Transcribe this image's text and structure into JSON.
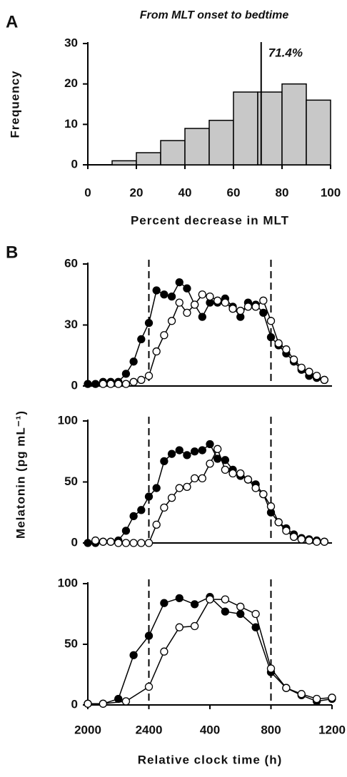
{
  "chart_data": [
    {
      "type": "histogram",
      "panel_label": "A",
      "title": "From MLT onset to bedtime",
      "xlabel": "Percent decrease in MLT",
      "ylabel": "Frequency",
      "bins": [
        0,
        10,
        20,
        30,
        40,
        50,
        60,
        70,
        80,
        90,
        100
      ],
      "values": [
        0,
        1,
        3,
        6,
        9,
        11,
        18,
        18,
        20,
        16
      ],
      "color": "#c8c8c8",
      "xlim": [
        0,
        100
      ],
      "xticks": [
        0,
        20,
        40,
        60,
        80,
        100
      ],
      "ylim": [
        0,
        30
      ],
      "yticks": [
        0,
        10,
        20,
        30
      ],
      "marker": 71.4,
      "annotation": "71.4%"
    },
    {
      "type": "line",
      "panel_label": "B",
      "ylabel": "Melatonin (pg mL⁻¹)",
      "xlim": [
        20,
        36
      ],
      "ylim": [
        0,
        60
      ],
      "yticks": [
        0,
        30,
        60
      ],
      "dashed_lines": [
        24,
        32
      ],
      "series": [
        {
          "color": "#000000",
          "marker": "filled",
          "x": [
            20,
            20.5,
            21,
            21.5,
            22,
            22.5,
            23,
            23.5,
            24,
            24.5,
            25,
            25.5,
            26,
            26.5,
            27,
            27.5,
            28,
            28.5,
            29,
            29.5,
            30,
            30.5,
            31,
            31.5,
            32,
            32.5,
            33,
            33.5,
            34,
            34.5,
            35,
            35.5
          ],
          "values": [
            1,
            1,
            2,
            2,
            2,
            6,
            12,
            23,
            31,
            47,
            45,
            44,
            51,
            48,
            40,
            34,
            41,
            41,
            43,
            39,
            34,
            41,
            40,
            36,
            24,
            20,
            16,
            12,
            8,
            5,
            4,
            3
          ]
        },
        {
          "color": "#ffffff",
          "marker": "open",
          "x": [
            21,
            21.5,
            22,
            22.5,
            23,
            23.5,
            24,
            24.5,
            25,
            25.5,
            26,
            26.5,
            27,
            27.5,
            28,
            28.5,
            29,
            29.5,
            30,
            30.5,
            31,
            31.5,
            32,
            32.5,
            33,
            33.5,
            34,
            34.5,
            35,
            35.5
          ],
          "values": [
            1,
            1,
            1,
            1,
            2,
            3,
            5,
            17,
            25,
            32,
            41,
            36,
            40,
            45,
            44,
            42,
            41,
            38,
            37,
            39,
            39,
            42,
            32,
            21,
            18,
            13,
            9,
            7,
            5,
            3
          ]
        }
      ]
    },
    {
      "type": "line",
      "xlim": [
        20,
        36
      ],
      "ylim": [
        0,
        100
      ],
      "yticks": [
        0,
        50,
        100
      ],
      "dashed_lines": [
        24,
        32
      ],
      "series": [
        {
          "color": "#000000",
          "marker": "filled",
          "x": [
            20,
            20.5,
            21,
            21.5,
            22,
            22.5,
            23,
            23.5,
            24,
            24.5,
            25,
            25.5,
            26,
            26.5,
            27,
            27.5,
            28,
            28.5,
            29,
            29.5,
            30,
            30.5,
            31,
            31.5,
            32,
            32.5,
            33,
            33.5,
            34,
            34.5,
            35,
            35.5
          ],
          "values": [
            0,
            0,
            1,
            1,
            2,
            10,
            22,
            27,
            38,
            45,
            67,
            73,
            76,
            72,
            75,
            76,
            81,
            69,
            68,
            60,
            55,
            52,
            48,
            40,
            25,
            17,
            12,
            7,
            4,
            3,
            2,
            1
          ]
        },
        {
          "color": "#ffffff",
          "marker": "open",
          "x": [
            20.5,
            21,
            21.5,
            22,
            22.5,
            23,
            23.5,
            24,
            24.5,
            25,
            25.5,
            26,
            26.5,
            27,
            27.5,
            28,
            28.5,
            29,
            29.5,
            30,
            30.5,
            31,
            31.5,
            32,
            32.5,
            33,
            33.5,
            34,
            34.5,
            35,
            35.5
          ],
          "values": [
            2,
            1,
            1,
            0,
            0,
            0,
            0,
            0,
            15,
            29,
            37,
            45,
            46,
            53,
            53,
            65,
            77,
            60,
            57,
            57,
            52,
            45,
            40,
            30,
            17,
            10,
            5,
            3,
            2,
            1,
            1
          ]
        }
      ]
    },
    {
      "type": "line",
      "xlabel": "Relative clock time (h)",
      "xlim": [
        20,
        36
      ],
      "ylim": [
        0,
        100
      ],
      "yticks": [
        0,
        50,
        100
      ],
      "dashed_lines": [
        24,
        32
      ],
      "xticks": [
        {
          "value": 20,
          "label": "2000"
        },
        {
          "value": 24,
          "label": "2400"
        },
        {
          "value": 28,
          "label": "400"
        },
        {
          "value": 32,
          "label": "800"
        },
        {
          "value": 36,
          "label": "1200"
        }
      ],
      "series": [
        {
          "color": "#000000",
          "marker": "filled",
          "x": [
            20,
            21,
            22,
            23,
            24,
            25,
            26,
            27,
            28,
            29,
            30,
            31,
            32,
            33,
            34,
            35,
            36
          ],
          "values": [
            1,
            1,
            5,
            41,
            57,
            84,
            88,
            83,
            89,
            77,
            75,
            64,
            27,
            14,
            8,
            3,
            5
          ]
        },
        {
          "color": "#ffffff",
          "marker": "open",
          "x": [
            20,
            21,
            22.5,
            24,
            25,
            26,
            27,
            28,
            29,
            30,
            31,
            32,
            33,
            34,
            35,
            36
          ],
          "values": [
            1,
            1,
            3,
            15,
            44,
            64,
            65,
            87,
            87,
            81,
            75,
            30,
            14,
            9,
            5,
            6
          ]
        }
      ]
    }
  ]
}
